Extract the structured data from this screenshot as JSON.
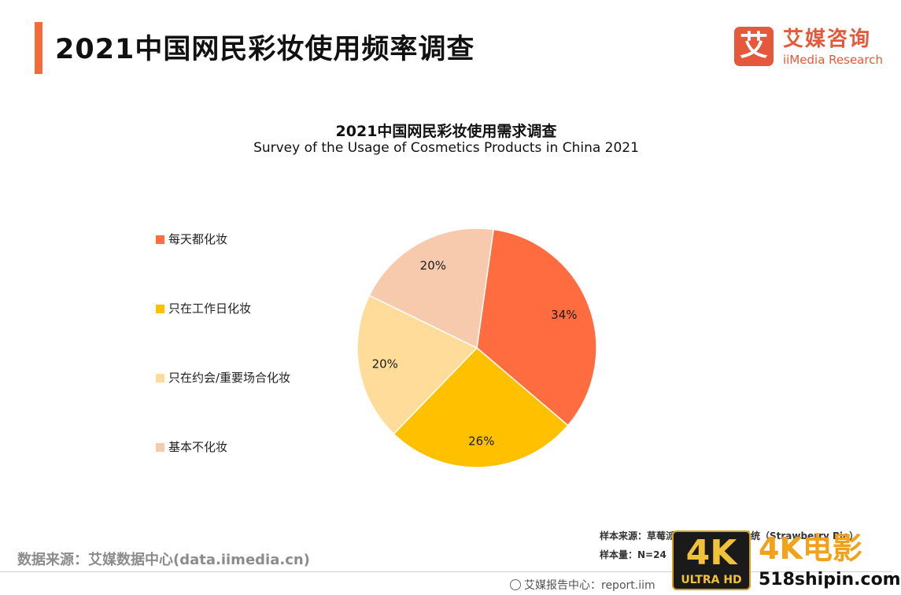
{
  "header": {
    "title": "2021中国网民彩妆使用频率调查"
  },
  "logo": {
    "icon_char": "艾",
    "name_cn": "艾媒咨询",
    "name_en": "iiMedia Research"
  },
  "chart_data": {
    "type": "pie",
    "title": "2021中国网民彩妆使用需求调查",
    "subtitle": "Survey of the Usage of Cosmetics Products in China 2021",
    "legend_position": "left",
    "slices": [
      {
        "label": "每天都化妆",
        "value": 34,
        "display": "34%",
        "color": "#ff6c40"
      },
      {
        "label": "只在工作日化妆",
        "value": 26,
        "display": "26%",
        "color": "#ffc000"
      },
      {
        "label": "只在约会/重要场合化妆",
        "value": 20,
        "display": "20%",
        "color": "#ffdc9a"
      },
      {
        "label": "基本不化妆",
        "value": 20,
        "display": "20%",
        "color": "#f8caad"
      }
    ]
  },
  "footer": {
    "source": "数据来源：艾媒数据中心(data.iimedia.cn)",
    "sample_source": "样本来源：草莓派数据调查与计算系统（Strawberry Pie）",
    "sample_size": "样本量：N=24",
    "report_center": "艾媒报告中心：report.iim"
  },
  "watermark": {
    "badge_text": "4K",
    "badge_sub": "ULTRA HD",
    "title": "4K电影",
    "url": "518shipin.com"
  }
}
